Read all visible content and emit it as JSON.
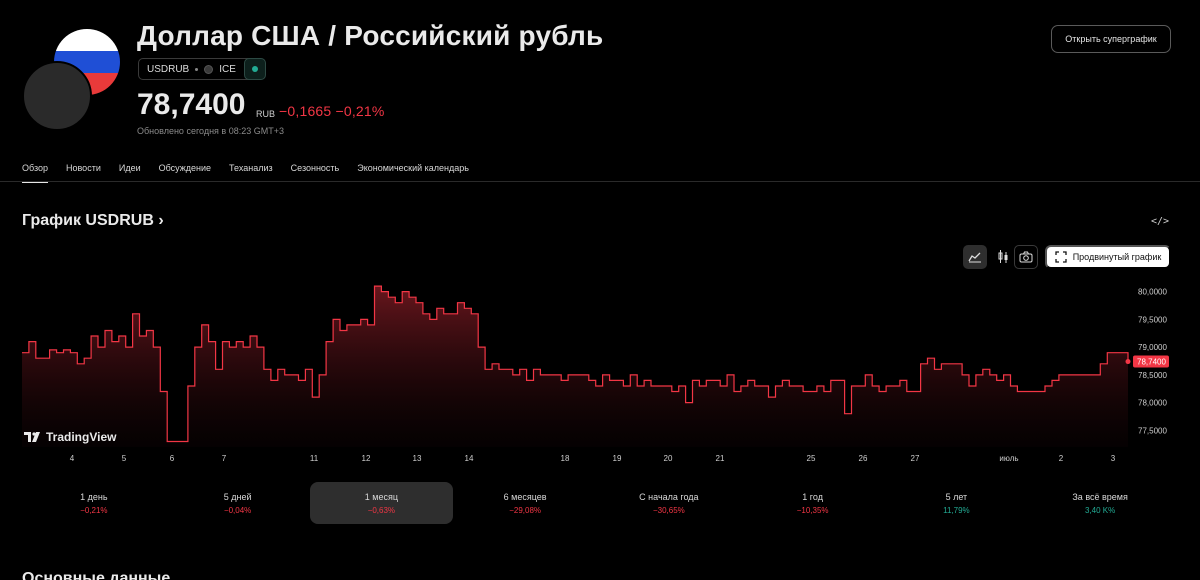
{
  "header": {
    "title": "Доллар США / Российский рубль",
    "ticker": "USDRUB",
    "exchange": "ICE",
    "price": "78,7400",
    "currency": "RUB",
    "change": "−0,1665 −0,21%",
    "updated": "Обновлено сегодня в 08:23 GMT+3",
    "supergraph_button": "Открыть суперграфик"
  },
  "tabs": [
    {
      "label": "Обзор",
      "active": true
    },
    {
      "label": "Новости"
    },
    {
      "label": "Идеи"
    },
    {
      "label": "Обсуждение"
    },
    {
      "label": "Теханализ"
    },
    {
      "label": "Сезонность"
    },
    {
      "label": "Экономический календарь"
    }
  ],
  "chart_section": {
    "title": "График USDRUB",
    "embed_label": "</>",
    "advanced_button": "Продвинутый график",
    "logo_text": "TradingView",
    "last_label": "78,7400"
  },
  "chart_data": {
    "type": "area",
    "x_labels": [
      "4",
      "5",
      "6",
      "7",
      "11",
      "12",
      "13",
      "14",
      "18",
      "19",
      "20",
      "21",
      "25",
      "26",
      "27",
      "июль",
      "2",
      "3"
    ],
    "y_ticks": [
      "80,0000",
      "79,5000",
      "79,0000",
      "78,5000",
      "78,0000",
      "77,5000"
    ],
    "ylim": [
      77.2,
      80.3
    ],
    "last_value": 78.74,
    "series": [
      {
        "values": [
          78.9,
          79.1,
          78.8,
          78.8,
          78.95,
          78.9,
          78.95,
          78.9,
          78.7,
          78.8,
          79.2,
          79.0,
          79.3,
          79.1,
          79.2,
          79.0,
          79.6,
          79.2,
          79.3,
          79.0,
          78.2,
          77.3,
          77.3,
          77.3,
          78.3,
          79.0,
          79.4,
          79.1,
          78.6,
          79.1,
          79.0,
          79.1,
          79.0,
          79.2,
          79.0,
          78.6,
          78.4,
          78.6,
          78.5,
          78.5,
          78.4,
          78.6,
          78.1,
          78.5,
          79.1,
          79.5,
          79.3,
          79.4,
          79.4,
          79.5,
          79.4,
          80.1,
          80.0,
          79.9,
          79.8,
          80.0,
          79.9,
          79.8,
          79.6,
          79.5,
          79.7,
          79.6,
          79.6,
          79.8,
          79.7,
          79.6,
          79.0,
          78.6,
          78.7,
          78.6,
          78.6,
          78.5,
          78.6,
          78.4,
          78.6,
          78.5,
          78.5,
          78.5,
          78.4,
          78.5,
          78.5,
          78.5,
          78.4,
          78.3,
          78.5,
          78.4,
          78.4,
          78.3,
          78.5,
          78.3,
          78.4,
          78.3,
          78.3,
          78.3,
          78.2,
          78.3,
          78.0,
          78.4,
          78.3,
          78.4,
          78.4,
          78.3,
          78.5,
          78.2,
          78.3,
          78.4,
          78.3,
          78.3,
          78.1,
          78.3,
          78.4,
          78.3,
          78.3,
          78.2,
          78.2,
          78.3,
          78.2,
          78.4,
          78.4,
          77.8,
          78.3,
          78.3,
          78.5,
          78.3,
          78.2,
          78.3,
          78.3,
          78.4,
          78.2,
          78.2,
          78.7,
          78.8,
          78.6,
          78.7,
          78.7,
          78.7,
          78.5,
          78.3,
          78.5,
          78.6,
          78.5,
          78.4,
          78.5,
          78.3,
          78.2,
          78.2,
          78.2,
          78.2,
          78.3,
          78.4,
          78.5,
          78.5,
          78.5,
          78.5,
          78.5,
          78.5,
          78.7,
          78.9,
          78.9,
          78.9,
          78.74
        ]
      }
    ]
  },
  "periods": [
    {
      "label": "1 день",
      "value": "−0,21%",
      "dir": "neg"
    },
    {
      "label": "5 дней",
      "value": "−0,04%",
      "dir": "neg"
    },
    {
      "label": "1 месяц",
      "value": "−0,63%",
      "dir": "neg",
      "active": true
    },
    {
      "label": "6 месяцев",
      "value": "−29,08%",
      "dir": "neg"
    },
    {
      "label": "С начала года",
      "value": "−30,65%",
      "dir": "neg"
    },
    {
      "label": "1 год",
      "value": "−10,35%",
      "dir": "neg"
    },
    {
      "label": "5 лет",
      "value": "11,79%",
      "dir": "pos"
    },
    {
      "label": "За всё время",
      "value": "3,40 K%",
      "dir": "pos"
    }
  ],
  "bottom_heading": "Основные данные",
  "colors": {
    "negative": "#f23645",
    "positive": "#22ab94",
    "background": "#000000"
  }
}
